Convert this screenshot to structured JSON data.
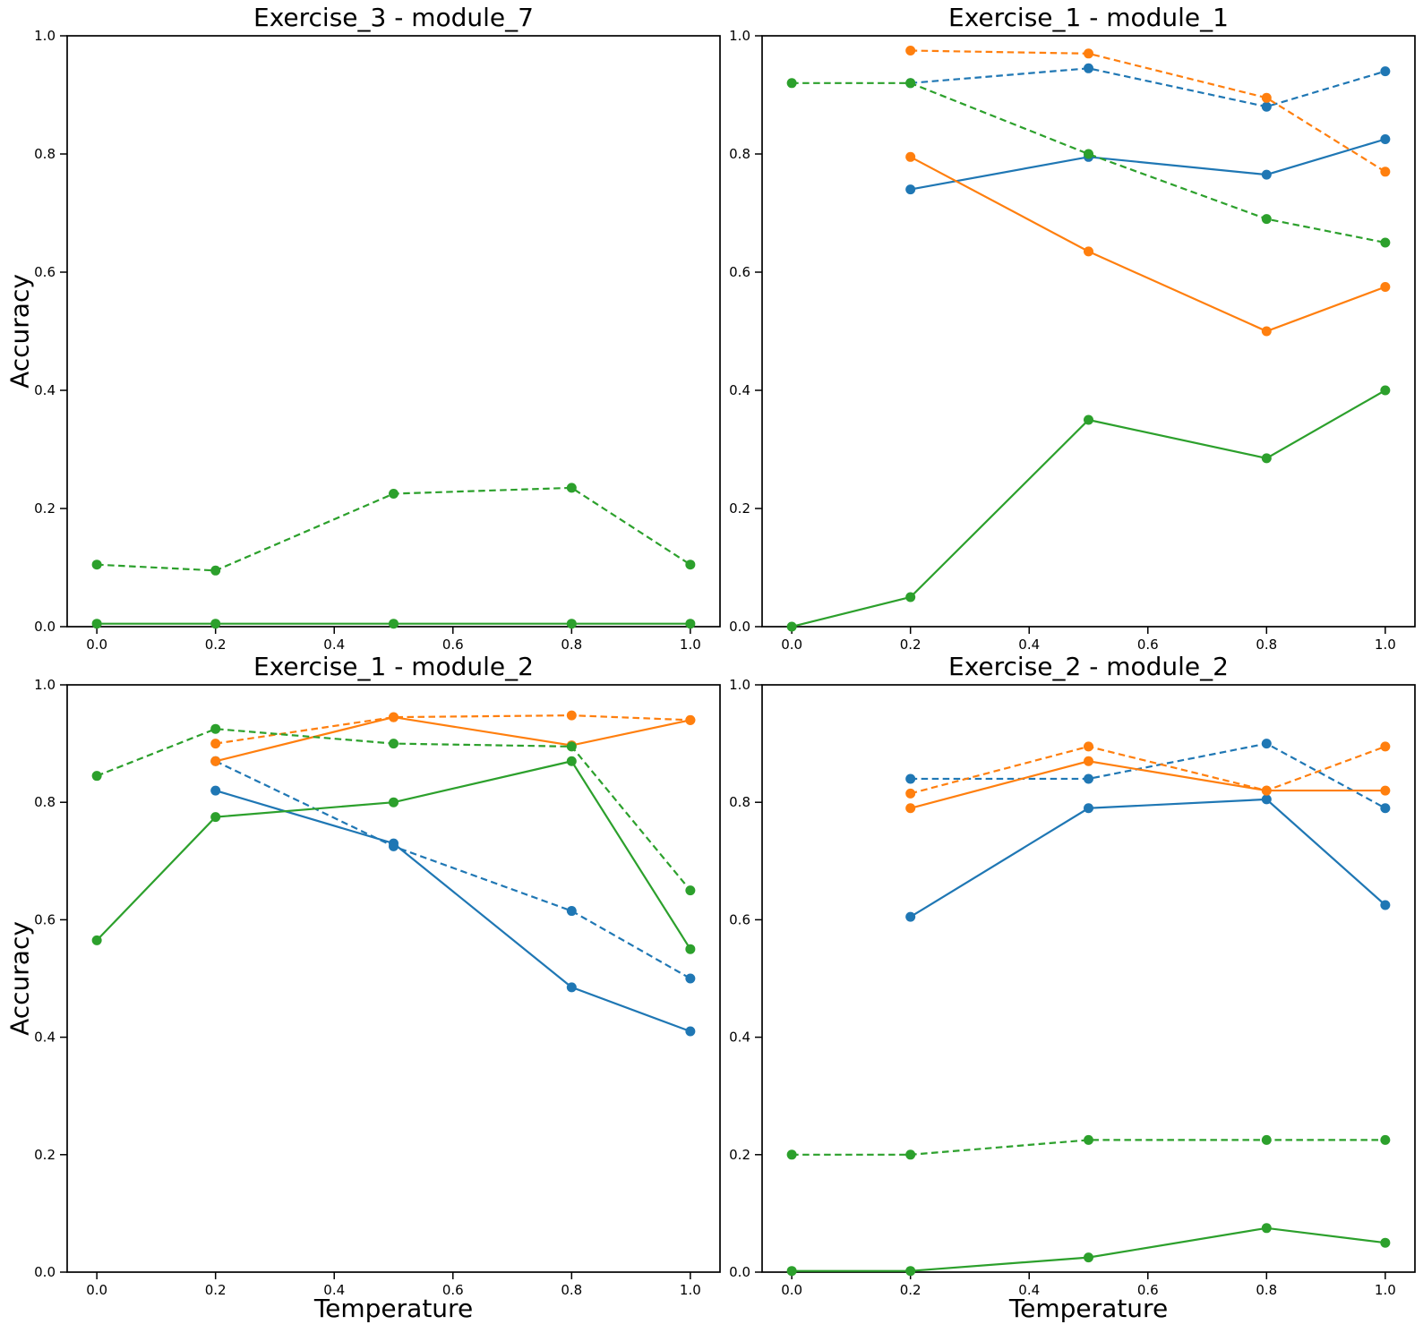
{
  "figure": {
    "background": "#ffffff",
    "text_color": "#000000"
  },
  "chart_data": [
    {
      "type": "line",
      "title": "Exercise_3 - module_7",
      "xlabel": "",
      "ylabel": "Accuracy",
      "xlim": [
        -0.05,
        1.05
      ],
      "ylim": [
        0.0,
        1.0
      ],
      "x_ticks": [
        0.0,
        0.2,
        0.4,
        0.6,
        0.8,
        1.0
      ],
      "x_tick_labels": [
        "0.0",
        "0.2",
        "0.4",
        "0.6",
        "0.8",
        "1.0"
      ],
      "y_ticks": [
        0.0,
        0.2,
        0.4,
        0.6,
        0.8,
        1.0
      ],
      "y_tick_labels": [
        "0.0",
        "0.2",
        "0.4",
        "0.6",
        "0.8",
        "1.0"
      ],
      "grid": false,
      "legend": "none",
      "series": [
        {
          "name": "green-solid",
          "color": "#2ca02c",
          "style": "solid",
          "marker": "circle",
          "x": [
            0.0,
            0.2,
            0.5,
            0.8,
            1.0
          ],
          "y": [
            0.005,
            0.005,
            0.005,
            0.005,
            0.005
          ]
        },
        {
          "name": "green-dashed",
          "color": "#2ca02c",
          "style": "dashed",
          "marker": "circle",
          "x": [
            0.0,
            0.2,
            0.5,
            0.8,
            1.0
          ],
          "y": [
            0.105,
            0.095,
            0.225,
            0.235,
            0.105
          ]
        }
      ]
    },
    {
      "type": "line",
      "title": "Exercise_1 - module_1",
      "xlabel": "",
      "ylabel": "",
      "xlim": [
        -0.05,
        1.05
      ],
      "ylim": [
        0.0,
        1.0
      ],
      "x_ticks": [
        0.0,
        0.2,
        0.4,
        0.6,
        0.8,
        1.0
      ],
      "x_tick_labels": [
        "0.0",
        "0.2",
        "0.4",
        "0.6",
        "0.8",
        "1.0"
      ],
      "y_ticks": [
        0.0,
        0.2,
        0.4,
        0.6,
        0.8,
        1.0
      ],
      "y_tick_labels": [
        "0.0",
        "0.2",
        "0.4",
        "0.6",
        "0.8",
        "1.0"
      ],
      "grid": false,
      "legend": "none",
      "series": [
        {
          "name": "blue-solid",
          "color": "#1f77b4",
          "style": "solid",
          "marker": "circle",
          "x": [
            0.2,
            0.5,
            0.8,
            1.0
          ],
          "y": [
            0.74,
            0.795,
            0.765,
            0.825
          ]
        },
        {
          "name": "blue-dashed",
          "color": "#1f77b4",
          "style": "dashed",
          "marker": "circle",
          "x": [
            0.2,
            0.5,
            0.8,
            1.0
          ],
          "y": [
            0.92,
            0.945,
            0.88,
            0.94
          ]
        },
        {
          "name": "orange-solid",
          "color": "#ff7f0e",
          "style": "solid",
          "marker": "circle",
          "x": [
            0.2,
            0.5,
            0.8,
            1.0
          ],
          "y": [
            0.795,
            0.635,
            0.5,
            0.575
          ]
        },
        {
          "name": "orange-dashed",
          "color": "#ff7f0e",
          "style": "dashed",
          "marker": "circle",
          "x": [
            0.2,
            0.5,
            0.8,
            1.0
          ],
          "y": [
            0.975,
            0.97,
            0.895,
            0.77
          ]
        },
        {
          "name": "green-solid",
          "color": "#2ca02c",
          "style": "solid",
          "marker": "circle",
          "x": [
            0.0,
            0.2,
            0.5,
            0.8,
            1.0
          ],
          "y": [
            0.0,
            0.05,
            0.35,
            0.285,
            0.4
          ]
        },
        {
          "name": "green-dashed",
          "color": "#2ca02c",
          "style": "dashed",
          "marker": "circle",
          "x": [
            0.0,
            0.2,
            0.5,
            0.8,
            1.0
          ],
          "y": [
            0.92,
            0.92,
            0.8,
            0.69,
            0.65
          ]
        }
      ]
    },
    {
      "type": "line",
      "title": "Exercise_1 - module_2",
      "xlabel": "Temperature",
      "ylabel": "Accuracy",
      "xlim": [
        -0.05,
        1.05
      ],
      "ylim": [
        0.0,
        1.0
      ],
      "x_ticks": [
        0.0,
        0.2,
        0.4,
        0.6,
        0.8,
        1.0
      ],
      "x_tick_labels": [
        "0.0",
        "0.2",
        "0.4",
        "0.6",
        "0.8",
        "1.0"
      ],
      "y_ticks": [
        0.0,
        0.2,
        0.4,
        0.6,
        0.8,
        1.0
      ],
      "y_tick_labels": [
        "0.0",
        "0.2",
        "0.4",
        "0.6",
        "0.8",
        "1.0"
      ],
      "grid": false,
      "legend": "none",
      "series": [
        {
          "name": "blue-solid",
          "color": "#1f77b4",
          "style": "solid",
          "marker": "circle",
          "x": [
            0.2,
            0.5,
            0.8,
            1.0
          ],
          "y": [
            0.82,
            0.73,
            0.485,
            0.41
          ]
        },
        {
          "name": "blue-dashed",
          "color": "#1f77b4",
          "style": "dashed",
          "marker": "circle",
          "x": [
            0.2,
            0.5,
            0.8,
            1.0
          ],
          "y": [
            0.87,
            0.725,
            0.615,
            0.5
          ]
        },
        {
          "name": "orange-solid",
          "color": "#ff7f0e",
          "style": "solid",
          "marker": "circle",
          "x": [
            0.2,
            0.5,
            0.8,
            1.0
          ],
          "y": [
            0.87,
            0.945,
            0.897,
            0.94
          ]
        },
        {
          "name": "orange-dashed",
          "color": "#ff7f0e",
          "style": "dashed",
          "marker": "circle",
          "x": [
            0.2,
            0.5,
            0.8,
            1.0
          ],
          "y": [
            0.9,
            0.945,
            0.948,
            0.94
          ]
        },
        {
          "name": "green-solid",
          "color": "#2ca02c",
          "style": "solid",
          "marker": "circle",
          "x": [
            0.0,
            0.2,
            0.5,
            0.8,
            1.0
          ],
          "y": [
            0.565,
            0.775,
            0.8,
            0.87,
            0.55
          ]
        },
        {
          "name": "green-dashed",
          "color": "#2ca02c",
          "style": "dashed",
          "marker": "circle",
          "x": [
            0.0,
            0.2,
            0.5,
            0.8,
            1.0
          ],
          "y": [
            0.845,
            0.925,
            0.9,
            0.895,
            0.65
          ]
        }
      ]
    },
    {
      "type": "line",
      "title": "Exercise_2 - module_2",
      "xlabel": "Temperature",
      "ylabel": "",
      "xlim": [
        -0.05,
        1.05
      ],
      "ylim": [
        0.0,
        1.0
      ],
      "x_ticks": [
        0.0,
        0.2,
        0.4,
        0.6,
        0.8,
        1.0
      ],
      "x_tick_labels": [
        "0.0",
        "0.2",
        "0.4",
        "0.6",
        "0.8",
        "1.0"
      ],
      "y_ticks": [
        0.0,
        0.2,
        0.4,
        0.6,
        0.8,
        1.0
      ],
      "y_tick_labels": [
        "0.0",
        "0.2",
        "0.4",
        "0.6",
        "0.8",
        "1.0"
      ],
      "grid": false,
      "legend": "none",
      "series": [
        {
          "name": "blue-solid",
          "color": "#1f77b4",
          "style": "solid",
          "marker": "circle",
          "x": [
            0.2,
            0.5,
            0.8,
            1.0
          ],
          "y": [
            0.605,
            0.79,
            0.805,
            0.625
          ]
        },
        {
          "name": "blue-dashed",
          "color": "#1f77b4",
          "style": "dashed",
          "marker": "circle",
          "x": [
            0.2,
            0.5,
            0.8,
            1.0
          ],
          "y": [
            0.84,
            0.84,
            0.9,
            0.79
          ]
        },
        {
          "name": "orange-solid",
          "color": "#ff7f0e",
          "style": "solid",
          "marker": "circle",
          "x": [
            0.2,
            0.5,
            0.8,
            1.0
          ],
          "y": [
            0.79,
            0.87,
            0.82,
            0.82
          ]
        },
        {
          "name": "orange-dashed",
          "color": "#ff7f0e",
          "style": "dashed",
          "marker": "circle",
          "x": [
            0.2,
            0.5,
            0.8,
            1.0
          ],
          "y": [
            0.815,
            0.895,
            0.82,
            0.895
          ]
        },
        {
          "name": "green-solid",
          "color": "#2ca02c",
          "style": "solid",
          "marker": "circle",
          "x": [
            0.0,
            0.2,
            0.5,
            0.8,
            1.0
          ],
          "y": [
            0.002,
            0.002,
            0.025,
            0.075,
            0.05
          ]
        },
        {
          "name": "green-dashed",
          "color": "#2ca02c",
          "style": "dashed",
          "marker": "circle",
          "x": [
            0.0,
            0.2,
            0.5,
            0.8,
            1.0
          ],
          "y": [
            0.2,
            0.2,
            0.225,
            0.225,
            0.225
          ]
        }
      ]
    }
  ]
}
